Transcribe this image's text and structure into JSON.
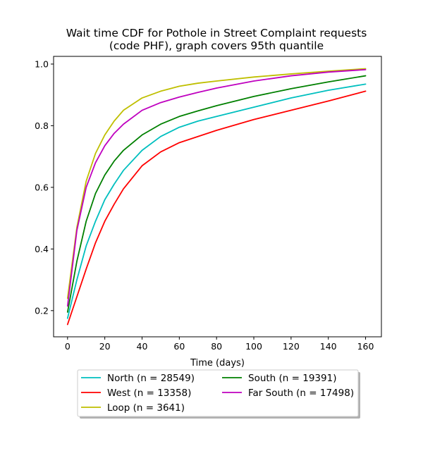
{
  "chart_data": {
    "type": "line",
    "title_line1": "Wait time CDF for Pothole in Street Complaint  requests",
    "title_line2": "(code PHF), graph covers 95th quantile",
    "xlabel": "Time (days)",
    "ylabel": "",
    "xlim": [
      -7.5,
      168.5
    ],
    "ylim": [
      0.115,
      1.025
    ],
    "xticks": [
      0,
      20,
      40,
      60,
      80,
      100,
      120,
      140,
      160
    ],
    "yticks": [
      0.2,
      0.4,
      0.6,
      0.8,
      1.0
    ],
    "grid": false,
    "legend_position": "below-center",
    "legend_columns": 2,
    "series": [
      {
        "name": "North (n = 28549)",
        "color": "#00bfbf",
        "x": [
          0,
          5,
          10,
          15,
          20,
          25,
          30,
          40,
          50,
          60,
          70,
          80,
          100,
          120,
          140,
          160
        ],
        "y": [
          0.175,
          0.3,
          0.41,
          0.49,
          0.56,
          0.61,
          0.655,
          0.72,
          0.765,
          0.795,
          0.815,
          0.83,
          0.86,
          0.89,
          0.915,
          0.935
        ]
      },
      {
        "name": "West (n = 13358)",
        "color": "#ff0000",
        "x": [
          0,
          5,
          10,
          15,
          20,
          25,
          30,
          40,
          50,
          60,
          70,
          80,
          100,
          120,
          140,
          160
        ],
        "y": [
          0.155,
          0.245,
          0.335,
          0.42,
          0.49,
          0.545,
          0.595,
          0.67,
          0.715,
          0.745,
          0.765,
          0.785,
          0.82,
          0.85,
          0.88,
          0.912
        ]
      },
      {
        "name": "Loop (n = 3641)",
        "color": "#bfbf00",
        "x": [
          0,
          5,
          10,
          15,
          20,
          25,
          30,
          40,
          50,
          60,
          70,
          80,
          100,
          120,
          140,
          160
        ],
        "y": [
          0.24,
          0.47,
          0.62,
          0.71,
          0.77,
          0.815,
          0.85,
          0.89,
          0.912,
          0.928,
          0.938,
          0.945,
          0.958,
          0.968,
          0.977,
          0.985
        ]
      },
      {
        "name": "South (n = 19391)",
        "color": "#008000",
        "x": [
          0,
          5,
          10,
          15,
          20,
          25,
          30,
          40,
          50,
          60,
          70,
          80,
          100,
          120,
          140,
          160
        ],
        "y": [
          0.195,
          0.36,
          0.49,
          0.58,
          0.64,
          0.685,
          0.72,
          0.77,
          0.805,
          0.83,
          0.848,
          0.865,
          0.895,
          0.92,
          0.942,
          0.962
        ]
      },
      {
        "name": "Far South (n = 17498)",
        "color": "#bf00bf",
        "x": [
          0,
          5,
          10,
          15,
          20,
          25,
          30,
          40,
          50,
          60,
          70,
          80,
          100,
          120,
          140,
          160
        ],
        "y": [
          0.215,
          0.46,
          0.6,
          0.68,
          0.735,
          0.775,
          0.805,
          0.85,
          0.875,
          0.893,
          0.908,
          0.922,
          0.945,
          0.962,
          0.974,
          0.982
        ]
      }
    ]
  }
}
